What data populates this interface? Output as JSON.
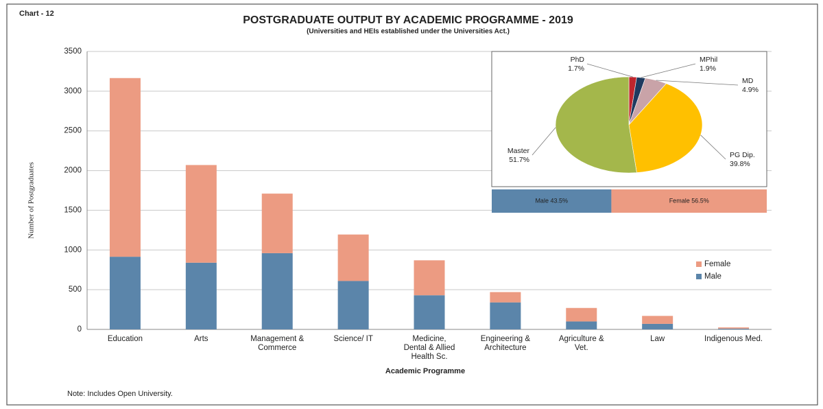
{
  "chart_data": [
    {
      "type": "bar",
      "stacked": true,
      "chart_label": "Chart - 12",
      "title": "POSTGRADUATE OUTPUT BY ACADEMIC PROGRAMME -  2019",
      "subtitle": "(Universities and HEIs established under the Universities Act.)",
      "y_label": "Number of Postgraduates",
      "x_label": "Academic Programme",
      "note": "Note: Includes Open University.",
      "categories": [
        "Education",
        "Arts",
        "Management &\nCommerce",
        "Science/ IT",
        "Medicine,\nDental & Allied\nHealth Sc.",
        "Engineering &\nArchitecture",
        "Agriculture &\nVet.",
        "Law",
        "Indigenous Med."
      ],
      "series": [
        {
          "name": "Male",
          "color": "#5b85aa",
          "values": [
            915,
            840,
            960,
            610,
            430,
            340,
            100,
            70,
            10
          ]
        },
        {
          "name": "Female",
          "color": "#ec9b82",
          "values": [
            2250,
            1230,
            750,
            585,
            440,
            130,
            170,
            100,
            15
          ]
        }
      ],
      "ylim": [
        0,
        3500
      ],
      "yticks": [
        0,
        500,
        1000,
        1500,
        2000,
        2500,
        3000,
        3500
      ],
      "grid": true
    },
    {
      "type": "pie",
      "categories": [
        "PhD",
        "MPhil",
        "MD",
        "PG Dip.",
        "Master"
      ],
      "values": [
        1.7,
        1.9,
        4.9,
        39.8,
        51.7
      ],
      "value_labels": [
        "1.7%",
        "1.9%",
        "4.9%",
        "39.8%",
        "51.7%"
      ],
      "colors": [
        "#c0262d",
        "#1f3a5f",
        "#c9a3a8",
        "#ffc000",
        "#a4b74b"
      ]
    },
    {
      "type": "bar",
      "stacked": true,
      "orientation": "horizontal",
      "values": [
        43.5,
        56.5
      ],
      "value_labels": [
        "Male 43.5%",
        "Female 56.5%"
      ],
      "colors": [
        "#5b85aa",
        "#ec9b82"
      ],
      "xlim": [
        0,
        100
      ]
    }
  ]
}
